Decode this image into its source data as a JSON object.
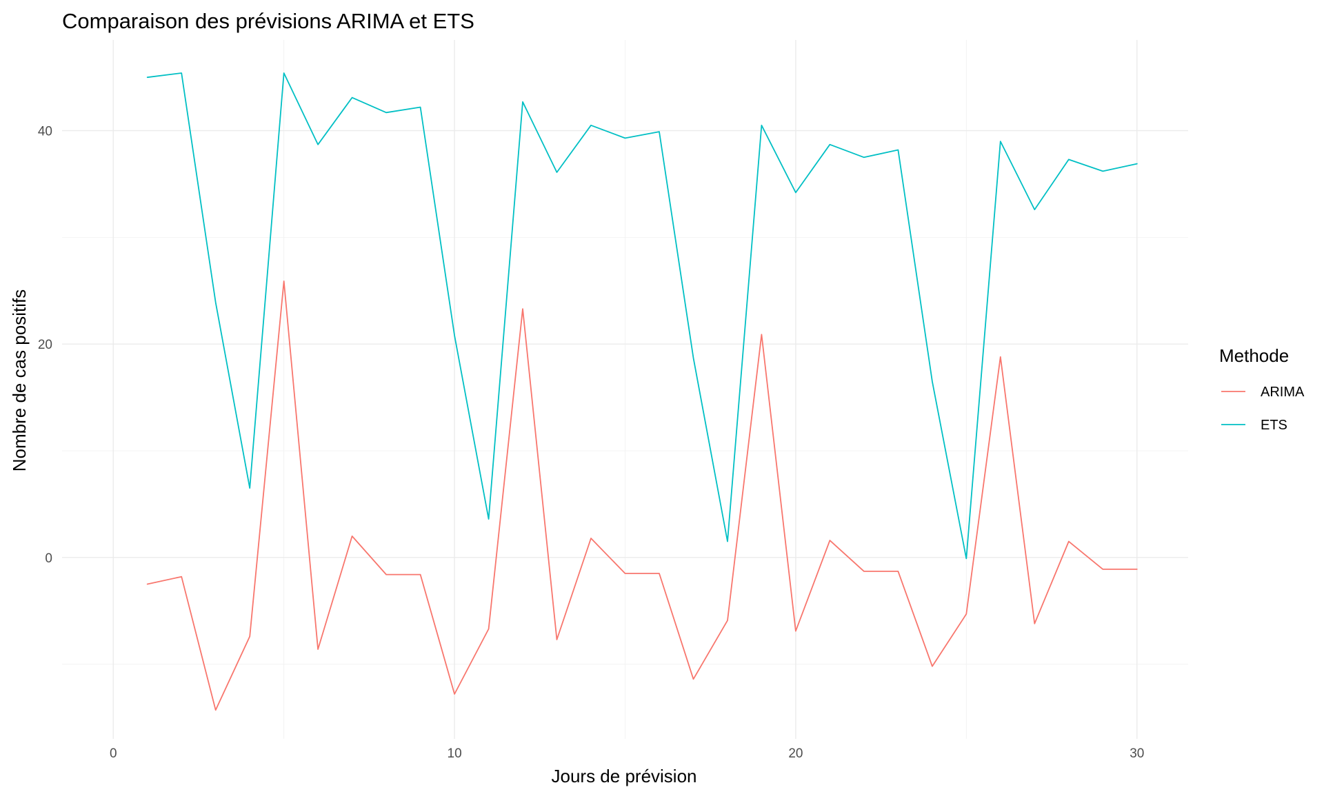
{
  "chart_data": {
    "type": "line",
    "title": "Comparaison des prévisions ARIMA et ETS",
    "xlabel": "Jours de prévision",
    "ylabel": "Nombre de cas positifs",
    "xlim": [
      -1.5,
      31.5
    ],
    "ylim": [
      -17,
      48.5
    ],
    "x_ticks": [
      0,
      10,
      20,
      30
    ],
    "x_minor_ticks": [
      5,
      15,
      25
    ],
    "y_ticks": [
      0,
      20,
      40
    ],
    "y_minor_ticks": [
      -10,
      10,
      30
    ],
    "grid": true,
    "legend": {
      "title": "Methode",
      "position": "right"
    },
    "x": [
      1,
      2,
      3,
      4,
      5,
      6,
      7,
      8,
      9,
      10,
      11,
      12,
      13,
      14,
      15,
      16,
      17,
      18,
      19,
      20,
      21,
      22,
      23,
      24,
      25,
      26,
      27,
      28,
      29,
      30
    ],
    "series": [
      {
        "name": "ARIMA",
        "color": "#F8766D",
        "values": [
          -2.5,
          -1.8,
          -14.3,
          -7.4,
          25.9,
          -8.6,
          2.0,
          -1.6,
          -1.6,
          -12.8,
          -6.7,
          23.3,
          -7.7,
          1.8,
          -1.5,
          -1.5,
          -11.4,
          -5.9,
          20.9,
          -6.9,
          1.6,
          -1.3,
          -1.3,
          -10.2,
          -5.3,
          18.8,
          -6.2,
          1.5,
          -1.1,
          -1.1
        ]
      },
      {
        "name": "ETS",
        "color": "#00BFC4",
        "values": [
          45.0,
          45.4,
          23.9,
          6.5,
          45.4,
          38.7,
          43.1,
          41.7,
          42.2,
          20.8,
          3.6,
          42.7,
          36.1,
          40.5,
          39.3,
          39.9,
          18.7,
          1.5,
          40.5,
          34.2,
          38.7,
          37.5,
          38.2,
          16.5,
          -0.1,
          39.0,
          32.6,
          37.3,
          36.2,
          36.9
        ]
      }
    ]
  }
}
